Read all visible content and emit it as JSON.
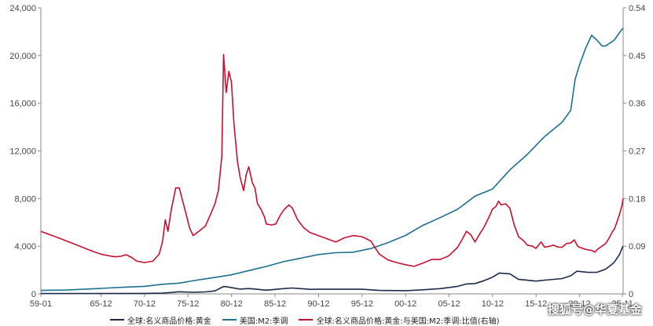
{
  "chart_data": {
    "type": "line",
    "x_tick_labels": [
      "59-01",
      "65-12",
      "70-12",
      "75-12",
      "80-12",
      "85-12",
      "90-12",
      "95-12",
      "00-12",
      "05-12",
      "10-12",
      "15-12",
      "20-12",
      "25-11"
    ],
    "y_left_ticks": [
      "0",
      "4,000",
      "8,000",
      "12,000",
      "16,000",
      "20,000",
      "24,000"
    ],
    "y_right_ticks": [
      "0",
      "0.09",
      "0.18",
      "0.27",
      "0.36",
      "0.45",
      "0.54"
    ],
    "y_left_lim": [
      0,
      24000
    ],
    "y_right_lim": [
      0,
      0.54
    ],
    "grid": false,
    "legend_position": "bottom",
    "series": [
      {
        "name": "全球:名义商品价格:黄金",
        "axis": "left",
        "color": "#1b2a4a",
        "points": [
          [
            1959.0,
            35
          ],
          [
            1965.9,
            35
          ],
          [
            1970.9,
            37
          ],
          [
            1972.9,
            64
          ],
          [
            1973.9,
            110
          ],
          [
            1974.9,
            180
          ],
          [
            1976.5,
            130
          ],
          [
            1977.9,
            165
          ],
          [
            1979.0,
            250
          ],
          [
            1980.0,
            620
          ],
          [
            1980.5,
            580
          ],
          [
            1981.9,
            400
          ],
          [
            1982.9,
            450
          ],
          [
            1983.9,
            380
          ],
          [
            1984.9,
            310
          ],
          [
            1986.9,
            440
          ],
          [
            1987.9,
            490
          ],
          [
            1989.9,
            380
          ],
          [
            1990.9,
            385
          ],
          [
            1993.9,
            385
          ],
          [
            1995.9,
            385
          ],
          [
            1997.9,
            290
          ],
          [
            1999.9,
            275
          ],
          [
            2001.0,
            270
          ],
          [
            2002.9,
            340
          ],
          [
            2004.9,
            440
          ],
          [
            2006.9,
            630
          ],
          [
            2007.9,
            830
          ],
          [
            2008.9,
            870
          ],
          [
            2009.9,
            1100
          ],
          [
            2010.9,
            1400
          ],
          [
            2011.7,
            1750
          ],
          [
            2012.9,
            1680
          ],
          [
            2013.9,
            1220
          ],
          [
            2015.9,
            1070
          ],
          [
            2016.9,
            1150
          ],
          [
            2018.9,
            1280
          ],
          [
            2019.9,
            1520
          ],
          [
            2020.6,
            1900
          ],
          [
            2021.9,
            1800
          ],
          [
            2022.9,
            1810
          ],
          [
            2023.9,
            2070
          ],
          [
            2024.5,
            2400
          ],
          [
            2024.9,
            2650
          ],
          [
            2025.5,
            3300
          ],
          [
            2025.9,
            4000
          ]
        ]
      },
      {
        "name": "美国:M2:季调",
        "axis": "left",
        "color": "#1d6f8f",
        "points": [
          [
            1959.0,
            290
          ],
          [
            1962.0,
            320
          ],
          [
            1965.9,
            460
          ],
          [
            1968.9,
            570
          ],
          [
            1970.9,
            630
          ],
          [
            1972.9,
            800
          ],
          [
            1974.9,
            900
          ],
          [
            1976.9,
            1150
          ],
          [
            1978.9,
            1370
          ],
          [
            1980.9,
            1600
          ],
          [
            1982.9,
            1950
          ],
          [
            1984.9,
            2300
          ],
          [
            1986.9,
            2700
          ],
          [
            1988.9,
            3000
          ],
          [
            1990.9,
            3300
          ],
          [
            1992.9,
            3450
          ],
          [
            1994.9,
            3500
          ],
          [
            1996.9,
            3800
          ],
          [
            1998.9,
            4300
          ],
          [
            2000.9,
            4900
          ],
          [
            2002.9,
            5750
          ],
          [
            2004.9,
            6400
          ],
          [
            2006.9,
            7100
          ],
          [
            2008.9,
            8200
          ],
          [
            2010.9,
            8800
          ],
          [
            2012.9,
            10400
          ],
          [
            2014.9,
            11700
          ],
          [
            2016.9,
            13200
          ],
          [
            2018.9,
            14400
          ],
          [
            2019.9,
            15400
          ],
          [
            2020.4,
            18000
          ],
          [
            2020.9,
            19200
          ],
          [
            2021.6,
            20600
          ],
          [
            2022.3,
            21700
          ],
          [
            2022.9,
            21300
          ],
          [
            2023.5,
            20800
          ],
          [
            2023.9,
            20800
          ],
          [
            2024.9,
            21300
          ],
          [
            2025.5,
            21900
          ],
          [
            2025.9,
            22300
          ]
        ]
      },
      {
        "name": "全球:名义商品价格:黄金:与美国:M2:季调:比值(右轴)",
        "axis": "right",
        "color": "#c8102e",
        "points": [
          [
            1959.0,
            0.118
          ],
          [
            1961.0,
            0.106
          ],
          [
            1963.0,
            0.093
          ],
          [
            1965.0,
            0.08
          ],
          [
            1965.9,
            0.075
          ],
          [
            1966.5,
            0.073
          ],
          [
            1967.5,
            0.07
          ],
          [
            1968.2,
            0.071
          ],
          [
            1968.8,
            0.074
          ],
          [
            1969.5,
            0.068
          ],
          [
            1970.0,
            0.062
          ],
          [
            1970.9,
            0.059
          ],
          [
            1971.9,
            0.062
          ],
          [
            1972.2,
            0.068
          ],
          [
            1972.6,
            0.075
          ],
          [
            1973.0,
            0.1
          ],
          [
            1973.3,
            0.14
          ],
          [
            1973.6,
            0.118
          ],
          [
            1974.0,
            0.16
          ],
          [
            1974.5,
            0.2
          ],
          [
            1974.9,
            0.2
          ],
          [
            1975.3,
            0.175
          ],
          [
            1975.7,
            0.15
          ],
          [
            1976.1,
            0.124
          ],
          [
            1976.5,
            0.11
          ],
          [
            1976.9,
            0.115
          ],
          [
            1977.3,
            0.12
          ],
          [
            1977.9,
            0.128
          ],
          [
            1978.5,
            0.15
          ],
          [
            1979.0,
            0.17
          ],
          [
            1979.4,
            0.195
          ],
          [
            1979.8,
            0.26
          ],
          [
            1980.0,
            0.452
          ],
          [
            1980.3,
            0.38
          ],
          [
            1980.6,
            0.42
          ],
          [
            1980.9,
            0.4
          ],
          [
            1981.2,
            0.32
          ],
          [
            1981.6,
            0.25
          ],
          [
            1981.9,
            0.22
          ],
          [
            1982.3,
            0.195
          ],
          [
            1982.6,
            0.225
          ],
          [
            1982.9,
            0.24
          ],
          [
            1983.3,
            0.21
          ],
          [
            1983.6,
            0.2
          ],
          [
            1983.9,
            0.17
          ],
          [
            1984.3,
            0.16
          ],
          [
            1984.7,
            0.145
          ],
          [
            1984.9,
            0.132
          ],
          [
            1985.5,
            0.13
          ],
          [
            1986.0,
            0.132
          ],
          [
            1986.5,
            0.148
          ],
          [
            1986.9,
            0.158
          ],
          [
            1987.5,
            0.168
          ],
          [
            1987.9,
            0.162
          ],
          [
            1988.5,
            0.14
          ],
          [
            1989.2,
            0.125
          ],
          [
            1989.9,
            0.116
          ],
          [
            1990.9,
            0.11
          ],
          [
            1991.9,
            0.104
          ],
          [
            1992.9,
            0.098
          ],
          [
            1993.9,
            0.106
          ],
          [
            1994.9,
            0.11
          ],
          [
            1995.9,
            0.108
          ],
          [
            1996.9,
            0.1
          ],
          [
            1997.9,
            0.075
          ],
          [
            1998.9,
            0.064
          ],
          [
            1999.9,
            0.059
          ],
          [
            2000.9,
            0.055
          ],
          [
            2001.9,
            0.052
          ],
          [
            2002.9,
            0.058
          ],
          [
            2003.9,
            0.065
          ],
          [
            2004.9,
            0.065
          ],
          [
            2005.9,
            0.072
          ],
          [
            2006.9,
            0.088
          ],
          [
            2007.5,
            0.105
          ],
          [
            2007.9,
            0.118
          ],
          [
            2008.4,
            0.112
          ],
          [
            2008.9,
            0.098
          ],
          [
            2009.5,
            0.115
          ],
          [
            2009.9,
            0.125
          ],
          [
            2010.5,
            0.145
          ],
          [
            2010.9,
            0.16
          ],
          [
            2011.3,
            0.165
          ],
          [
            2011.6,
            0.175
          ],
          [
            2011.9,
            0.168
          ],
          [
            2012.4,
            0.17
          ],
          [
            2012.9,
            0.162
          ],
          [
            2013.4,
            0.13
          ],
          [
            2013.9,
            0.108
          ],
          [
            2014.5,
            0.1
          ],
          [
            2014.9,
            0.092
          ],
          [
            2015.5,
            0.09
          ],
          [
            2015.9,
            0.086
          ],
          [
            2016.5,
            0.098
          ],
          [
            2016.9,
            0.088
          ],
          [
            2017.5,
            0.09
          ],
          [
            2017.9,
            0.092
          ],
          [
            2018.5,
            0.088
          ],
          [
            2018.9,
            0.088
          ],
          [
            2019.4,
            0.095
          ],
          [
            2019.9,
            0.096
          ],
          [
            2020.3,
            0.102
          ],
          [
            2020.7,
            0.09
          ],
          [
            2020.9,
            0.088
          ],
          [
            2021.4,
            0.085
          ],
          [
            2021.9,
            0.083
          ],
          [
            2022.3,
            0.082
          ],
          [
            2022.7,
            0.079
          ],
          [
            2022.9,
            0.083
          ],
          [
            2023.3,
            0.088
          ],
          [
            2023.9,
            0.095
          ],
          [
            2024.3,
            0.105
          ],
          [
            2024.7,
            0.118
          ],
          [
            2024.9,
            0.122
          ],
          [
            2025.2,
            0.135
          ],
          [
            2025.5,
            0.15
          ],
          [
            2025.8,
            0.168
          ],
          [
            2025.9,
            0.18
          ]
        ]
      }
    ]
  },
  "watermark_text": "搜狐号@华夏基金"
}
